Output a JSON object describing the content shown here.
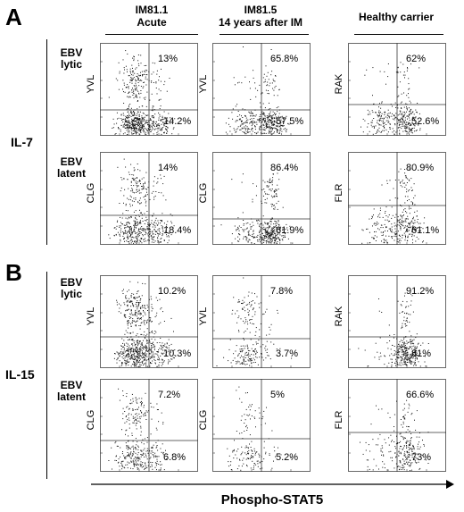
{
  "panels": [
    {
      "letter": "A",
      "cytokine": "IL-7"
    },
    {
      "letter": "B",
      "cytokine": "IL-15"
    }
  ],
  "columns": [
    {
      "line1": "IM81.1",
      "line2": "Acute"
    },
    {
      "line1": "IM81.5",
      "line2": "14 years after IM"
    },
    {
      "line1": "Healthy carrier",
      "line2": ""
    }
  ],
  "rows": [
    {
      "line1": "EBV",
      "line2": "lytic"
    },
    {
      "line1": "EBV",
      "line2": "latent"
    },
    {
      "line1": "EBV",
      "line2": "lytic"
    },
    {
      "line1": "EBV",
      "line2": "latent"
    }
  ],
  "yaxis_labels": [
    [
      "YVL",
      "YVL",
      "RAK"
    ],
    [
      "CLG",
      "CLG",
      "FLR"
    ],
    [
      "YVL",
      "YVL",
      "RAK"
    ],
    [
      "CLG",
      "CLG",
      "FLR"
    ]
  ],
  "percent_upper": [
    [
      "13%",
      "65.8%",
      "62%"
    ],
    [
      "14%",
      "86.4%",
      "80.9%"
    ],
    [
      "10.2%",
      "7.8%",
      "91.2%"
    ],
    [
      "7.2%",
      "5%",
      "66.6%"
    ]
  ],
  "percent_lower": [
    [
      "14.2%",
      "57.5%",
      "52.6%"
    ],
    [
      "18.4%",
      "61.9%",
      "61.1%"
    ],
    [
      "10.3%",
      "3.7%",
      "81%"
    ],
    [
      "6.8%",
      "5.2%",
      "73%"
    ]
  ],
  "xaxis_title": "Phospho-STAT5",
  "colors": {
    "ink": "#000000",
    "dots": "#111111"
  }
}
